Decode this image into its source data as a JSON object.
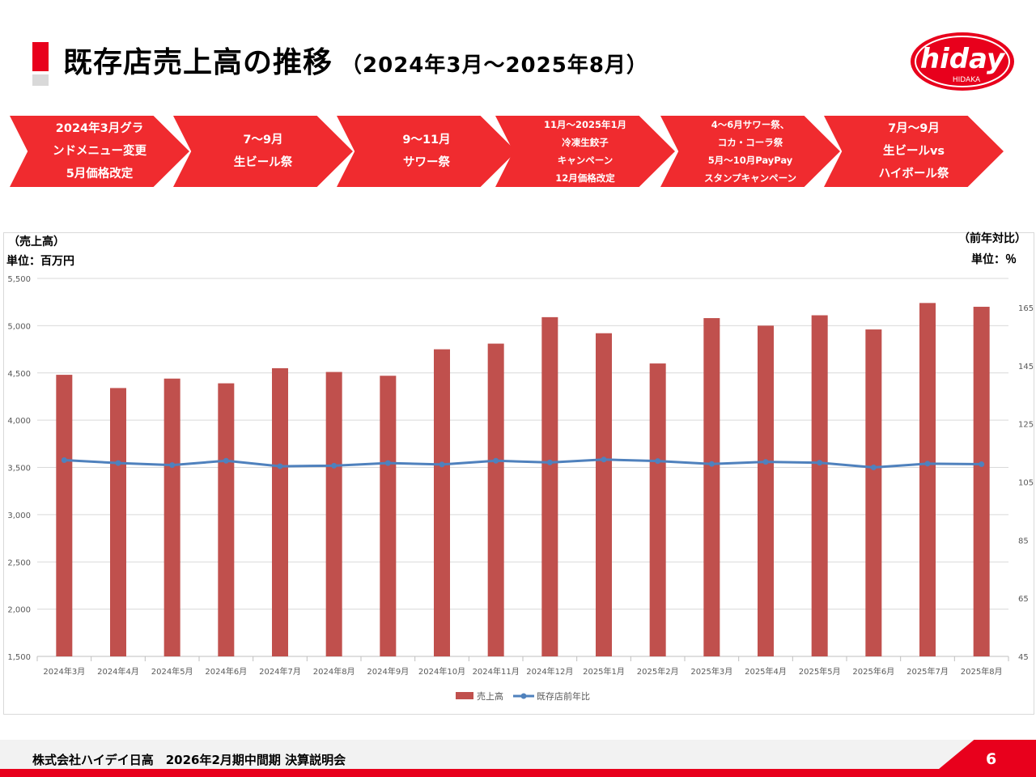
{
  "header": {
    "title": "既存店売上高の推移",
    "subtitle": "（2024年3月～2025年8月）"
  },
  "logo": {
    "text": "hiday",
    "sub": "HIDAKA",
    "color": "#e8001c"
  },
  "timeline": [
    {
      "lines": [
        "2024年3月グラ",
        "ンドメニュー変更",
        "5月価格改定"
      ]
    },
    {
      "lines": [
        "7～9月",
        "生ビール祭"
      ]
    },
    {
      "lines": [
        "9～11月",
        "サワー祭"
      ]
    },
    {
      "lines": [
        "11月～2025年1月",
        "冷凍生餃子",
        "キャンペーン",
        "12月価格改定"
      ]
    },
    {
      "lines": [
        "4～6月サワー祭、",
        "コカ・コーラ祭",
        "5月～10月PayPay",
        "スタンプキャンペーン"
      ]
    },
    {
      "lines": [
        "7月～9月",
        "生ビールvs",
        "ハイボール祭"
      ]
    }
  ],
  "chart_labels": {
    "left_title": "（売上高）",
    "left_unit": "単位：百万円",
    "right_title": "（前年対比）",
    "right_unit": "単位：％"
  },
  "chart_data": {
    "type": "bar",
    "categories": [
      "2024年3月",
      "2024年4月",
      "2024年5月",
      "2024年6月",
      "2024年7月",
      "2024年8月",
      "2024年9月",
      "2024年10月",
      "2024年11月",
      "2024年12月",
      "2025年1月",
      "2025年2月",
      "2025年3月",
      "2025年4月",
      "2025年5月",
      "2025年6月",
      "2025年7月",
      "2025年8月"
    ],
    "series": [
      {
        "name": "売上高",
        "type": "bar",
        "axis": "left",
        "color": "#c0504d",
        "values": [
          4480,
          4340,
          4440,
          4390,
          4550,
          4510,
          4470,
          4750,
          4810,
          5090,
          4920,
          4600,
          5080,
          5000,
          5110,
          4960,
          5240,
          5200
        ]
      },
      {
        "name": "既存店前年比",
        "type": "line",
        "axis": "right",
        "color": "#4f81bd",
        "values": [
          112.5,
          111.5,
          110.8,
          112.3,
          110.4,
          110.6,
          111.5,
          111.0,
          112.3,
          111.7,
          112.7,
          112.2,
          111.2,
          111.9,
          111.6,
          110.0,
          111.3,
          111.1
        ]
      }
    ],
    "y_left": {
      "min": 1500,
      "max": 5500,
      "ticks": [
        "1,500",
        "2,000",
        "2,500",
        "3,000",
        "3,500",
        "4,000",
        "4,500",
        "5,000",
        "5,500"
      ]
    },
    "y_right": {
      "min": 45,
      "max": 175,
      "ticks": [
        "45",
        "65",
        "85",
        "105",
        "125",
        "145",
        "165"
      ]
    },
    "grid": true,
    "legend_position": "bottom"
  },
  "footer": {
    "company": "株式会社ハイデイ日高　2026年2月期中間期 決算説明会",
    "page": "6"
  }
}
